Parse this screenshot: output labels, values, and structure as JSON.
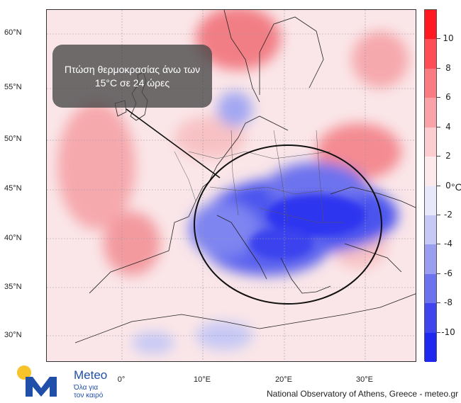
{
  "callout": {
    "text": "Πτώση θερμοκρασίας άνω των 15°C σε 24 ώρες"
  },
  "lat_labels": [
    "60°N",
    "55°N",
    "50°N",
    "45°N",
    "40°N",
    "35°N",
    "30°N"
  ],
  "lon_labels": [
    "0°",
    "10°E",
    "20°E",
    "30°E"
  ],
  "colorbar": {
    "ticks": [
      "10",
      "8",
      "6",
      "4",
      "2",
      "0",
      "-2",
      "-4",
      "-6",
      "-8",
      "-10"
    ],
    "unit": "°C",
    "colors": [
      "#ff1a22",
      "#ff4d55",
      "#fb7b82",
      "#f9a3a8",
      "#fbcdd0",
      "#fbeaec",
      "#e8e8fb",
      "#c6c8f5",
      "#9a9ef0",
      "#6d72ee",
      "#3f44ef",
      "#1f28f0"
    ]
  },
  "branding": {
    "name": "Meteo",
    "tagline_line1": "Όλα για",
    "tagline_line2": "τον καιρό",
    "accent": "#1f4fa8",
    "sun": "#f6c32b"
  },
  "credit": "National Observatory of Athens, Greece - meteo.gr"
}
